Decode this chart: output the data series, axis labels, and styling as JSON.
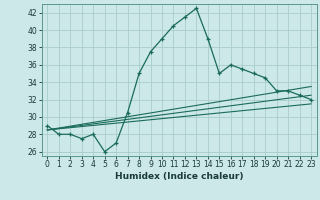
{
  "xlabel": "Humidex (Indice chaleur)",
  "bg_color": "#cce8e8",
  "grid_color": "#aacccc",
  "line_color": "#1a6b5a",
  "xlim": [
    -0.5,
    23.5
  ],
  "ylim": [
    25.5,
    43.0
  ],
  "yticks": [
    26,
    28,
    30,
    32,
    34,
    36,
    38,
    40,
    42
  ],
  "xticks": [
    0,
    1,
    2,
    3,
    4,
    5,
    6,
    7,
    8,
    9,
    10,
    11,
    12,
    13,
    14,
    15,
    16,
    17,
    18,
    19,
    20,
    21,
    22,
    23
  ],
  "series1_x": [
    0,
    1,
    2,
    3,
    4,
    5,
    6,
    7,
    8,
    9,
    10,
    11,
    12,
    13,
    14,
    15,
    16,
    17,
    18,
    19,
    20,
    21,
    22,
    23
  ],
  "series1_y": [
    29.0,
    28.0,
    28.0,
    27.5,
    28.0,
    26.0,
    27.0,
    30.5,
    35.0,
    37.5,
    39.0,
    40.5,
    41.5,
    42.5,
    39.0,
    35.0,
    36.0,
    35.5,
    35.0,
    34.5,
    33.0,
    33.0,
    32.5,
    32.0
  ],
  "series2_x": [
    0,
    23
  ],
  "series2_y": [
    28.5,
    33.5
  ],
  "series3_x": [
    0,
    23
  ],
  "series3_y": [
    28.5,
    32.5
  ],
  "series4_x": [
    0,
    23
  ],
  "series4_y": [
    28.5,
    31.5
  ]
}
